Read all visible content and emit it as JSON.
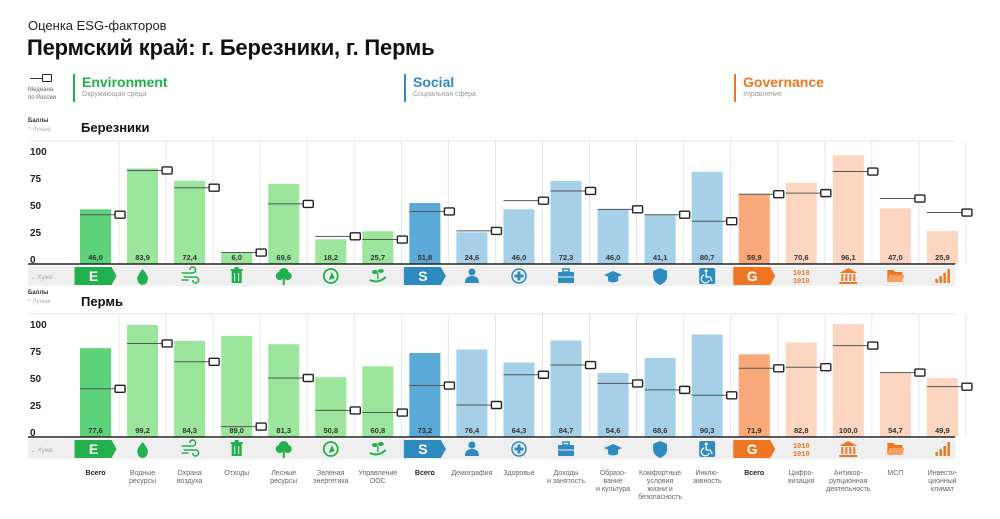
{
  "header": {
    "subtitle": "Оценка ESG-факторов",
    "title": "Пермский край: г. Березники, г. Пермь"
  },
  "legend": {
    "median_label_line1": "Медиана",
    "median_label_line2": "по России"
  },
  "pillars": [
    {
      "key": "E",
      "name": "Environment",
      "subtitle": "Окружающая среда",
      "color": "#21b04b"
    },
    {
      "key": "S",
      "name": "Social",
      "subtitle": "Социальная сфера",
      "color": "#2e8bc0"
    },
    {
      "key": "G",
      "name": "Governance",
      "subtitle": "Управление",
      "color": "#ee7623"
    }
  ],
  "axis": {
    "unit_label": "Баллы",
    "better_label": "Лучше",
    "worse_label": "Хуже"
  },
  "colors": {
    "E_total": "#5ed27a",
    "E_sub": "#9be69c",
    "S_total": "#5aa9d6",
    "S_sub": "#a6d0e8",
    "G_total": "#f9a87a",
    "G_sub": "#fdd6c2",
    "E_icon": "#21b04b",
    "S_icon": "#2e8bc0",
    "G_icon": "#ee7623",
    "icon_strip_bg": "#efefef"
  },
  "chart_data": [
    {
      "type": "bar",
      "title": "Березники",
      "ylabel": "Баллы",
      "ylim": [
        0,
        100
      ],
      "yticks": [
        0,
        25,
        50,
        75,
        100
      ],
      "categories": [
        "Всего",
        "Водные ресурсы",
        "Охрана воздуха",
        "Отходы",
        "Лесные ресурсы",
        "Зеленая энергетика",
        "Управление ООС",
        "Всего",
        "Демография",
        "Здоровье",
        "Доходы и занятость",
        "Образование и культура",
        "Комфортные условия жизни и безопасность",
        "Инклюзивность",
        "Всего",
        "Цифровизация",
        "Антикоррупционная деятельность",
        "МСП",
        "Инвестиционный климат"
      ],
      "groups": [
        "E",
        "E",
        "E",
        "E",
        "E",
        "E",
        "E",
        "S",
        "S",
        "S",
        "S",
        "S",
        "S",
        "S",
        "G",
        "G",
        "G",
        "G",
        "G"
      ],
      "series": [
        {
          "name": "Оценка",
          "values": [
            46.0,
            83.9,
            72.4,
            6.0,
            69.6,
            18.2,
            25.7,
            51.8,
            24.6,
            46.0,
            72.3,
            46.0,
            41.1,
            80.7,
            59.9,
            70.6,
            96.1,
            47.0,
            25.9
          ],
          "value_labels": [
            "46,0",
            "83,9",
            "72,4",
            "6,0",
            "69,6",
            "18,2",
            "25,7",
            "51,8",
            "24,6",
            "46,0",
            "72,3",
            "46,0",
            "41,1",
            "80,7",
            "59,9",
            "70,6",
            "96,1",
            "47,0",
            "25,9"
          ]
        },
        {
          "name": "Медиана по России",
          "values": [
            41,
            82,
            66,
            6,
            51,
            21,
            18,
            44,
            26,
            54,
            63,
            46,
            41,
            35,
            60,
            61,
            81,
            56,
            43
          ]
        }
      ]
    },
    {
      "type": "bar",
      "title": "Пермь",
      "ylabel": "Баллы",
      "ylim": [
        0,
        100
      ],
      "yticks": [
        0,
        25,
        50,
        75,
        100
      ],
      "categories": [
        "Всего",
        "Водные ресурсы",
        "Охрана воздуха",
        "Отходы",
        "Лесные ресурсы",
        "Зеленая энергетика",
        "Управление ООС",
        "Всего",
        "Демография",
        "Здоровье",
        "Доходы и занятость",
        "Образование и культура",
        "Комфортные условия жизни и безопасность",
        "Инклюзивность",
        "Всего",
        "Цифровизация",
        "Антикоррупционная деятельность",
        "МСП",
        "Инвестиционный климат"
      ],
      "groups": [
        "E",
        "E",
        "E",
        "E",
        "E",
        "E",
        "E",
        "S",
        "S",
        "S",
        "S",
        "S",
        "S",
        "S",
        "G",
        "G",
        "G",
        "G",
        "G"
      ],
      "series": [
        {
          "name": "Оценка",
          "values": [
            77.6,
            99.2,
            84.3,
            89.0,
            81.3,
            50.8,
            60.8,
            73.2,
            76.4,
            64.3,
            84.7,
            54.6,
            68.6,
            90.3,
            71.9,
            82.8,
            100.0,
            54.7,
            49.9
          ],
          "value_labels": [
            "77,6",
            "99,2",
            "84,3",
            "89,0",
            "81,3",
            "50,8",
            "60,8",
            "73,2",
            "76,4",
            "64,3",
            "84,7",
            "54,6",
            "68,6",
            "90,3",
            "71,9",
            "82,8",
            "100,0",
            "54,7",
            "49,9"
          ]
        },
        {
          "name": "Медиана по России",
          "values": [
            40,
            82,
            65,
            5,
            50,
            20,
            18,
            43,
            25,
            53,
            62,
            45,
            39,
            34,
            59,
            60,
            80,
            55,
            42
          ]
        }
      ]
    }
  ],
  "category_labels": [
    {
      "text": "Всего",
      "bold": true
    },
    {
      "text": "Водные\nресурсы"
    },
    {
      "text": "Охрана\nвоздуха"
    },
    {
      "text": "Отходы"
    },
    {
      "text": "Лесные\nресурсы"
    },
    {
      "text": "Зеленая\nэнергетика"
    },
    {
      "text": "Управление\nООС"
    },
    {
      "text": "Всего",
      "bold": true
    },
    {
      "text": "Демография"
    },
    {
      "text": "Здоровье"
    },
    {
      "text": "Доходы\nи занятость"
    },
    {
      "text": "Образо-\nвание\nи культура"
    },
    {
      "text": "Комфортные\nусловия\nжизни и\nбезопасность"
    },
    {
      "text": "Инклю-\nзивность"
    },
    {
      "text": "Всего",
      "bold": true
    },
    {
      "text": "Цифро-\nвизация"
    },
    {
      "text": "Антикор-\nрупционная\nдеятельность"
    },
    {
      "text": "МСП"
    },
    {
      "text": "Инвести-\nционный\nклимат"
    }
  ],
  "icons": [
    "E-badge",
    "water-drop-icon",
    "wind-icon",
    "trash-icon",
    "tree-icon",
    "green-energy-icon",
    "hand-plant-icon",
    "S-badge",
    "person-icon",
    "health-plus-icon",
    "briefcase-icon",
    "graduation-cap-icon",
    "shield-icon",
    "wheelchair-icon",
    "G-badge",
    "binary-digits-icon",
    "government-building-icon",
    "folder-icon",
    "growth-bars-icon"
  ]
}
